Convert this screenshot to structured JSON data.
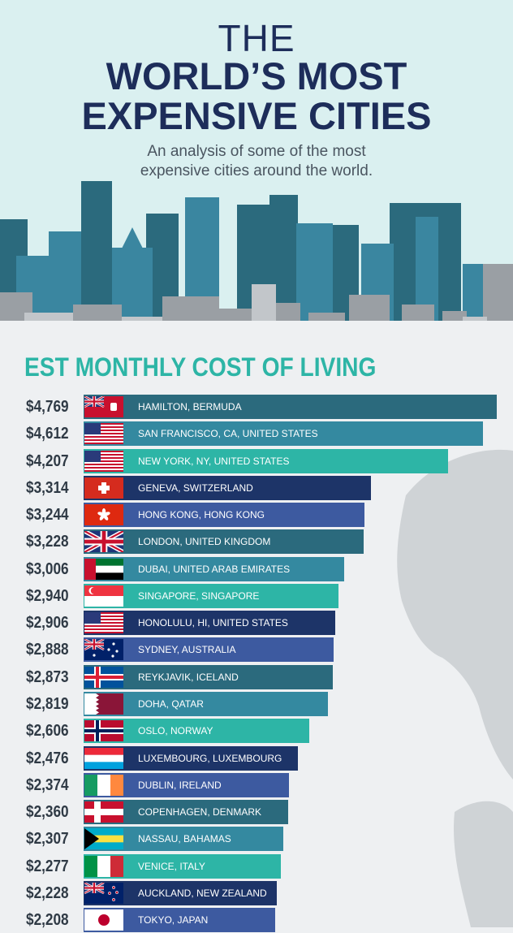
{
  "header": {
    "the": "THE",
    "line1": "WORLD’S MOST",
    "line2": "EXPENSIVE CITIES",
    "sub1": "An analysis of some of the most",
    "sub2": "expensive cities around the world."
  },
  "chart_data": {
    "type": "bar",
    "orientation": "horizontal",
    "title": "EST MONTHLY COST OF LIVING",
    "categories": [
      "HAMILTON, BERMUDA",
      "SAN FRANCISCO, CA, UNITED STATES",
      "NEW YORK, NY, UNITED STATES",
      "GENEVA, SWITZERLAND",
      "HONG KONG, HONG KONG",
      "LONDON, UNITED KINGDOM",
      "DUBAI, UNITED ARAB EMIRATES",
      "SINGAPORE, SINGAPORE",
      "HONOLULU, HI, UNITED STATES",
      "SYDNEY, AUSTRALIA",
      "REYKJAVIK, ICELAND",
      "DOHA, QATAR",
      "OSLO, NORWAY",
      "LUXEMBOURG, LUXEMBOURG",
      "DUBLIN, IRELAND",
      "COPENHAGEN, DENMARK",
      "NASSAU, BAHAMAS",
      "VENICE, ITALY",
      "AUCKLAND, NEW ZEALAND",
      "TOKYO, JAPAN"
    ],
    "values": [
      4769,
      4612,
      4207,
      3314,
      3244,
      3228,
      3006,
      2940,
      2906,
      2888,
      2873,
      2819,
      2606,
      2476,
      2374,
      2360,
      2307,
      2277,
      2228,
      2208
    ],
    "value_labels": [
      "$4,769",
      "$4,612",
      "$4,207",
      "$3,314",
      "$3,244",
      "$3,228",
      "$3,006",
      "$2,940",
      "$2,906",
      "$2,888",
      "$2,873",
      "$2,819",
      "$2,606",
      "$2,476",
      "$2,374",
      "$2,360",
      "$2,307",
      "$2,277",
      "$2,228",
      "$2,208"
    ],
    "flags": [
      "bermuda",
      "usa",
      "usa",
      "switzerland",
      "hong-kong",
      "uk",
      "uae",
      "singapore",
      "usa",
      "australia",
      "iceland",
      "qatar",
      "norway",
      "luxembourg",
      "ireland",
      "denmark",
      "bahamas",
      "italy",
      "new-zealand",
      "japan"
    ],
    "bar_colors": [
      "#2b6a7d",
      "#3489a0",
      "#2db5a6",
      "#1d3468",
      "#3d5aa0",
      "#2b6a7d",
      "#3489a0",
      "#2db5a6",
      "#1d3468",
      "#3d5aa0",
      "#2b6a7d",
      "#3489a0",
      "#2db5a6",
      "#1d3468",
      "#3d5aa0",
      "#2b6a7d",
      "#3489a0",
      "#2db5a6",
      "#1d3468",
      "#3d5aa0"
    ]
  }
}
